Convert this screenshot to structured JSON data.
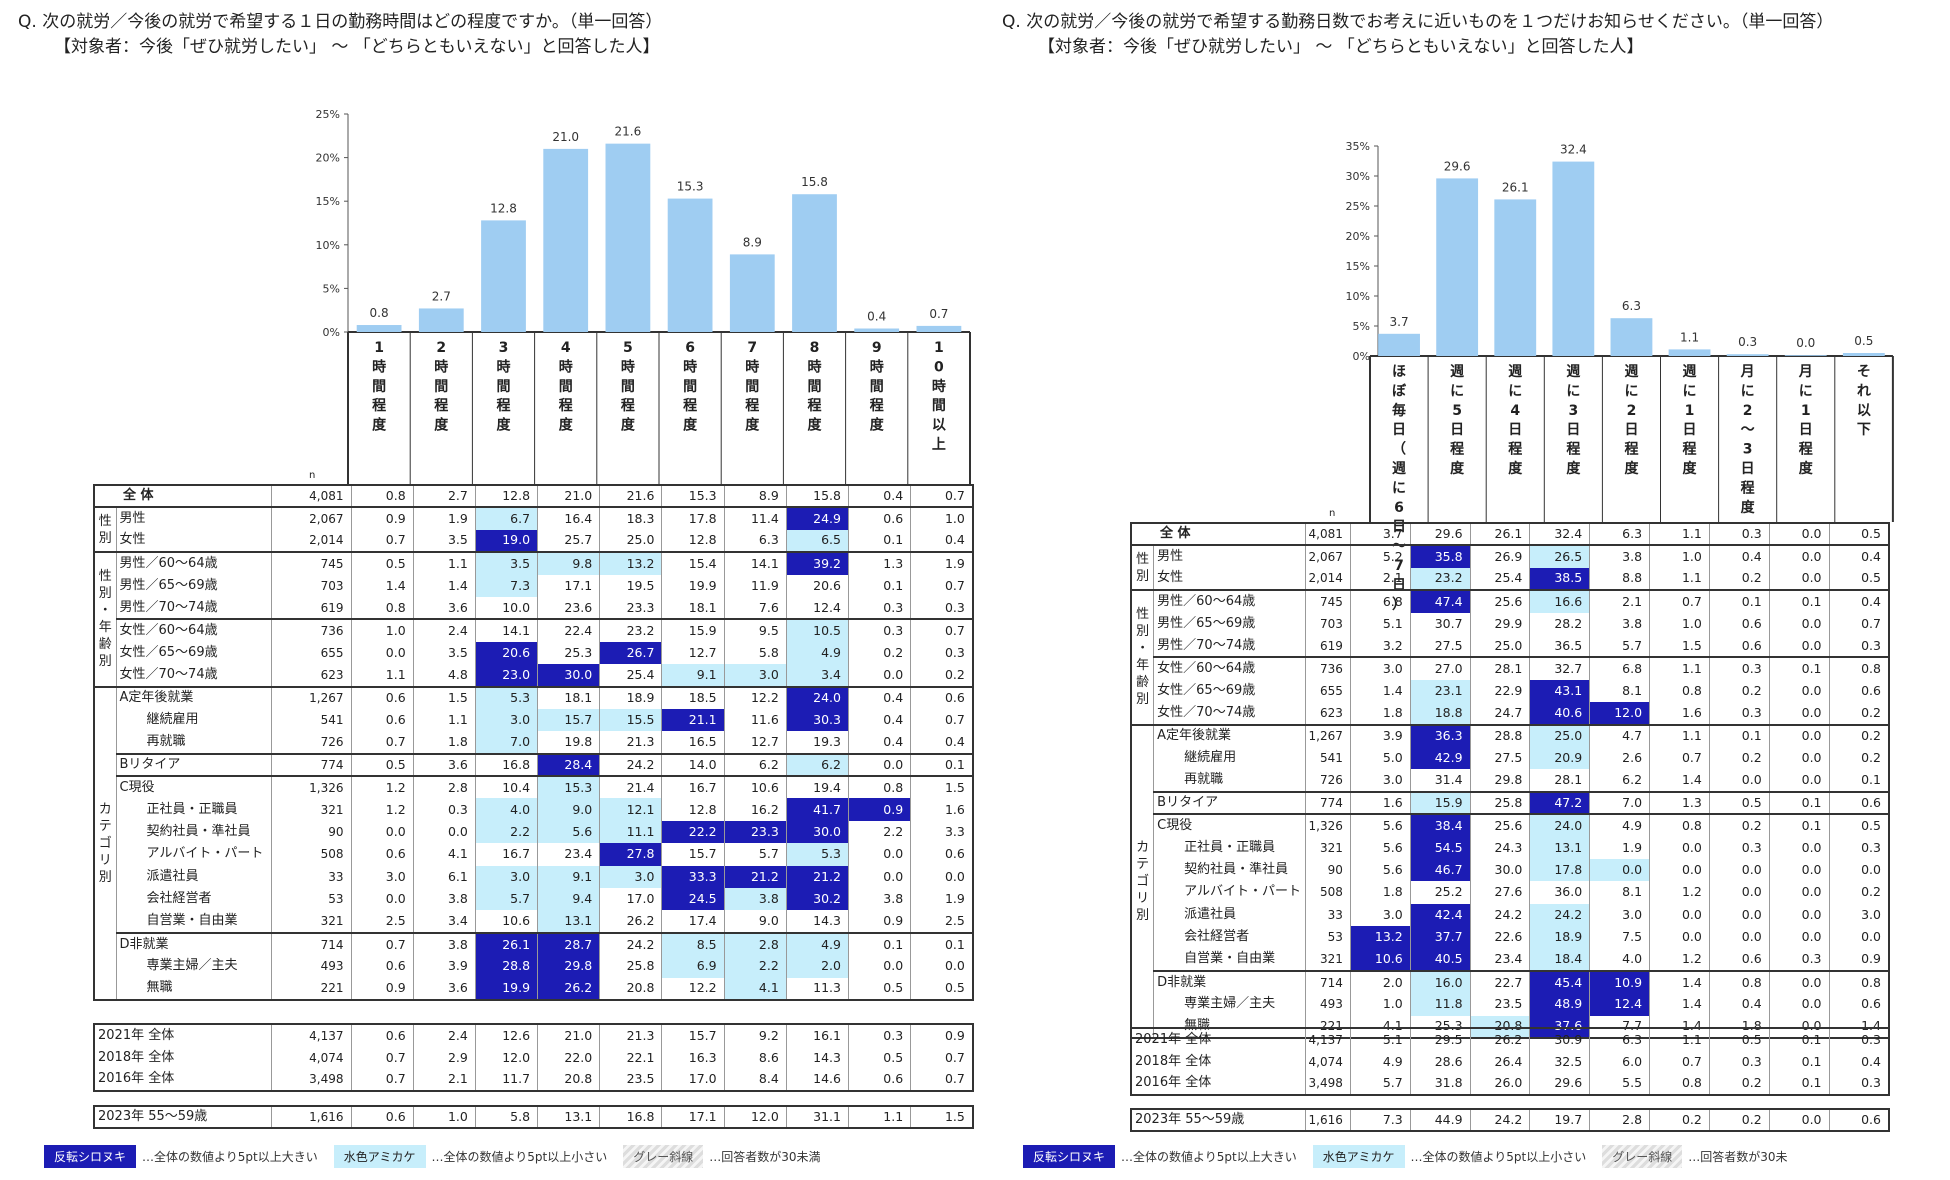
{
  "legend": {
    "hi_label": "反転シロヌキ",
    "hi_desc": "…全体の数値より5pt以上大きい",
    "lo_label": "水色アミカケ",
    "lo_desc": "…全体の数値より5pt以上小さい",
    "gray_label": "グレー斜線",
    "gray_desc": "…回答者数が30未満",
    "gray_desc_cut": "…回答者数が30未"
  },
  "colors": {
    "bar": "#9fcdf2",
    "hi": "#1c1cb4",
    "lo": "#c7eefb"
  },
  "left": {
    "question": "Q. 次の就労／今後の就労で希望する１日の勤務時間はどの程度ですか。（単一回答）",
    "target": "【対象者：今後「ぜひ就労したい」 ～ 「どちらともいえない」と回答した人】",
    "n_label": "n",
    "chart_data": {
      "type": "bar",
      "categories": [
        "1時間程度",
        "2時間程度",
        "3時間程度",
        "4時間程度",
        "5時間程度",
        "6時間程度",
        "7時間程度",
        "8時間程度",
        "9時間程度",
        "10時間以上"
      ],
      "values": [
        0.8,
        2.7,
        12.8,
        21.0,
        21.6,
        15.3,
        8.9,
        15.8,
        0.4,
        0.7
      ],
      "value_labels": [
        "0.8",
        "2.7",
        "12.8",
        "21.0",
        "21.6",
        "15.3",
        "8.9",
        "15.8",
        "0.4",
        "0.7"
      ],
      "yticks": [
        "25%",
        "20%",
        "15%",
        "10%",
        "5%",
        "0%"
      ],
      "ylim": [
        0,
        25
      ],
      "ylabel": "",
      "xlabel": ""
    },
    "col_heads": [
      "1時間程度",
      "2時間程度",
      "3時間程度",
      "4時間程度",
      "5時間程度",
      "6時間程度",
      "7時間程度",
      "8時間程度",
      "9時間程度",
      "10時間以上"
    ],
    "main": [
      {
        "label": "全 体",
        "n": "4,081",
        "v": [
          "0.8",
          "2.7",
          "12.8",
          "21.0",
          "21.6",
          "15.3",
          "8.9",
          "15.8",
          "0.4",
          "0.7"
        ],
        "s": "",
        "sub": false
      },
      {
        "g": "性別",
        "span": 2,
        "label": "男性",
        "n": "2,067",
        "v": [
          "0.9",
          "1.9",
          "6.7",
          "16.4",
          "18.3",
          "17.8",
          "11.4",
          "24.9",
          "0.6",
          "1.0"
        ],
        "s": "0010000200",
        "sep": true
      },
      {
        "label": "女性",
        "n": "2,014",
        "v": [
          "0.7",
          "3.5",
          "19.0",
          "25.7",
          "25.0",
          "12.8",
          "6.3",
          "6.5",
          "0.1",
          "0.4"
        ],
        "s": "0020000100"
      },
      {
        "g": "性別・年齢別",
        "span": 6,
        "label": "男性／60～64歳",
        "n": "745",
        "v": [
          "0.5",
          "1.1",
          "3.5",
          "9.8",
          "13.2",
          "15.4",
          "14.1",
          "39.2",
          "1.3",
          "1.9"
        ],
        "s": "0011100200",
        "sep": true
      },
      {
        "label": "男性／65～69歳",
        "n": "703",
        "v": [
          "1.4",
          "1.4",
          "7.3",
          "17.1",
          "19.5",
          "19.9",
          "11.9",
          "20.6",
          "0.1",
          "0.7"
        ],
        "s": "0010000000"
      },
      {
        "label": "男性／70～74歳",
        "n": "619",
        "v": [
          "0.8",
          "3.6",
          "10.0",
          "23.6",
          "23.3",
          "18.1",
          "7.6",
          "12.4",
          "0.3",
          "0.3"
        ],
        "s": ""
      },
      {
        "label": "女性／60～64歳",
        "n": "736",
        "v": [
          "1.0",
          "2.4",
          "14.1",
          "22.4",
          "23.2",
          "15.9",
          "9.5",
          "10.5",
          "0.3",
          "0.7"
        ],
        "s": "0000000100",
        "sep": true
      },
      {
        "label": "女性／65～69歳",
        "n": "655",
        "v": [
          "0.0",
          "3.5",
          "20.6",
          "25.3",
          "26.7",
          "12.7",
          "5.8",
          "4.9",
          "0.2",
          "0.3"
        ],
        "s": "0020200100"
      },
      {
        "label": "女性／70～74歳",
        "n": "623",
        "v": [
          "1.1",
          "4.8",
          "23.0",
          "30.0",
          "25.4",
          "9.1",
          "3.0",
          "3.4",
          "0.0",
          "0.2"
        ],
        "s": "0022011100"
      },
      {
        "g": "カテゴリ別",
        "span": 15,
        "label": "A定年後就業",
        "n": "1,267",
        "v": [
          "0.6",
          "1.5",
          "5.3",
          "18.1",
          "18.9",
          "18.5",
          "12.2",
          "24.0",
          "0.4",
          "0.6"
        ],
        "s": "0010000200",
        "sep": true
      },
      {
        "label": "継続雇用",
        "n": "541",
        "v": [
          "0.6",
          "1.1",
          "3.0",
          "15.7",
          "15.5",
          "21.1",
          "11.6",
          "30.3",
          "0.4",
          "0.7"
        ],
        "s": "0011120200",
        "sub": true
      },
      {
        "label": "再就職",
        "n": "726",
        "v": [
          "0.7",
          "1.8",
          "7.0",
          "19.8",
          "21.3",
          "16.5",
          "12.7",
          "19.3",
          "0.4",
          "0.4"
        ],
        "s": "0010000000",
        "sub": true
      },
      {
        "label": "Bリタイア",
        "n": "774",
        "v": [
          "0.5",
          "3.6",
          "16.8",
          "28.4",
          "24.2",
          "14.0",
          "6.2",
          "6.2",
          "0.0",
          "0.1"
        ],
        "s": "0002000100",
        "sep": true
      },
      {
        "label": "C現役",
        "n": "1,326",
        "v": [
          "1.2",
          "2.8",
          "10.4",
          "15.3",
          "21.4",
          "16.7",
          "10.6",
          "19.4",
          "0.8",
          "1.5"
        ],
        "s": "0001000000",
        "sep": true
      },
      {
        "label": "正社員・正職員",
        "n": "321",
        "v": [
          "1.2",
          "0.3",
          "4.0",
          "9.0",
          "12.1",
          "12.8",
          "16.2",
          "41.7",
          "0.9",
          "1.6"
        ],
        "s": "0011100220",
        "sub": true
      },
      {
        "label": "契約社員・準社員",
        "n": "90",
        "v": [
          "0.0",
          "0.0",
          "2.2",
          "5.6",
          "11.1",
          "22.2",
          "23.3",
          "30.0",
          "2.2",
          "3.3"
        ],
        "s": "0011122200",
        "sub": true
      },
      {
        "label": "アルバイト・パート",
        "n": "508",
        "v": [
          "0.6",
          "4.1",
          "16.7",
          "23.4",
          "27.8",
          "15.7",
          "5.7",
          "5.3",
          "0.0",
          "0.6"
        ],
        "s": "0000200100",
        "sub": true
      },
      {
        "label": "派遣社員",
        "n": "33",
        "v": [
          "3.0",
          "6.1",
          "3.0",
          "9.1",
          "3.0",
          "33.3",
          "21.2",
          "21.2",
          "0.0",
          "0.0"
        ],
        "s": "0011122200",
        "sub": true
      },
      {
        "label": "会社経営者",
        "n": "53",
        "v": [
          "0.0",
          "3.8",
          "5.7",
          "9.4",
          "17.0",
          "24.5",
          "3.8",
          "30.2",
          "3.8",
          "1.9"
        ],
        "s": "0011021200",
        "sub": true
      },
      {
        "label": "自営業・自由業",
        "n": "321",
        "v": [
          "2.5",
          "3.4",
          "10.6",
          "13.1",
          "26.2",
          "17.4",
          "9.0",
          "14.3",
          "0.9",
          "2.5"
        ],
        "s": "0001000000",
        "sub": true
      },
      {
        "label": "D非就業",
        "n": "714",
        "v": [
          "0.7",
          "3.8",
          "26.1",
          "28.7",
          "24.2",
          "8.5",
          "2.8",
          "4.9",
          "0.1",
          "0.1"
        ],
        "s": "0022011100",
        "sep": true
      },
      {
        "label": "専業主婦／主夫",
        "n": "493",
        "v": [
          "0.6",
          "3.9",
          "28.8",
          "29.8",
          "25.8",
          "6.9",
          "2.2",
          "2.0",
          "0.0",
          "0.0"
        ],
        "s": "0022011100",
        "sub": true
      },
      {
        "label": "無職",
        "n": "221",
        "v": [
          "0.9",
          "3.6",
          "19.9",
          "26.2",
          "20.8",
          "12.2",
          "4.1",
          "11.3",
          "0.5",
          "0.5"
        ],
        "s": "0022001000",
        "sub": true
      }
    ],
    "years": [
      {
        "label": "2021年 全体",
        "n": "4,137",
        "v": [
          "0.6",
          "2.4",
          "12.6",
          "21.0",
          "21.3",
          "15.7",
          "9.2",
          "16.1",
          "0.3",
          "0.9"
        ]
      },
      {
        "label": "2018年 全体",
        "n": "4,074",
        "v": [
          "0.7",
          "2.9",
          "12.0",
          "22.0",
          "22.1",
          "16.3",
          "8.6",
          "14.3",
          "0.5",
          "0.7"
        ]
      },
      {
        "label": "2016年 全体",
        "n": "3,498",
        "v": [
          "0.7",
          "2.1",
          "11.7",
          "20.8",
          "23.5",
          "17.0",
          "8.4",
          "14.6",
          "0.6",
          "0.7"
        ]
      }
    ],
    "extra": [
      {
        "label": "2023年 55～59歳",
        "n": "1,616",
        "v": [
          "0.6",
          "1.0",
          "5.8",
          "13.1",
          "16.8",
          "17.1",
          "12.0",
          "31.1",
          "1.1",
          "1.5"
        ]
      }
    ]
  },
  "right": {
    "question": "Q. 次の就労／今後の就労で希望する勤務日数でお考えに近いものを１つだけお知らせください。（単一回答）",
    "target": "【対象者：今後「ぜひ就労したい」 ～ 「どちらともいえない」と回答した人】",
    "n_label": "n",
    "chart_data": {
      "type": "bar",
      "categories": [
        "ほぼ毎日（週に6日～7日）",
        "週に5日程度",
        "週に4日程度",
        "週に3日程度",
        "週に2日程度",
        "週に1日程度",
        "月に2～3日程度",
        "月に1日程度",
        "それ以下"
      ],
      "values": [
        3.7,
        29.6,
        26.1,
        32.4,
        6.3,
        1.1,
        0.3,
        0.0,
        0.5
      ],
      "value_labels": [
        "3.7",
        "29.6",
        "26.1",
        "32.4",
        "6.3",
        "1.1",
        "0.3",
        "0.0",
        "0.5"
      ],
      "yticks": [
        "35%",
        "30%",
        "25%",
        "20%",
        "15%",
        "10%",
        "5%",
        "0%"
      ],
      "ylim": [
        0,
        35
      ],
      "ylabel": "",
      "xlabel": ""
    },
    "col_heads": [
      "ほぼ毎日（週に6日～7日）",
      "週に5日程度",
      "週に4日程度",
      "週に3日程度",
      "週に2日程度",
      "週に1日程度",
      "月に2～3日程度",
      "月に1日程度",
      "それ以下"
    ],
    "main": [
      {
        "label": "全 体",
        "n": "4,081",
        "v": [
          "3.7",
          "29.6",
          "26.1",
          "32.4",
          "6.3",
          "1.1",
          "0.3",
          "0.0",
          "0.5"
        ],
        "s": ""
      },
      {
        "g": "性別",
        "span": 2,
        "label": "男性",
        "n": "2,067",
        "v": [
          "5.2",
          "35.8",
          "26.9",
          "26.5",
          "3.8",
          "1.0",
          "0.4",
          "0.0",
          "0.4"
        ],
        "s": "020100000",
        "sep": true
      },
      {
        "label": "女性",
        "n": "2,014",
        "v": [
          "2.1",
          "23.2",
          "25.4",
          "38.5",
          "8.8",
          "1.1",
          "0.2",
          "0.0",
          "0.5"
        ],
        "s": "010200000"
      },
      {
        "g": "性別・年齢別",
        "span": 6,
        "label": "男性／60～64歳",
        "n": "745",
        "v": [
          "6.8",
          "47.4",
          "25.6",
          "16.6",
          "2.1",
          "0.7",
          "0.1",
          "0.1",
          "0.4"
        ],
        "s": "020100000",
        "sep": true
      },
      {
        "label": "男性／65～69歳",
        "n": "703",
        "v": [
          "5.1",
          "30.7",
          "29.9",
          "28.2",
          "3.8",
          "1.0",
          "0.6",
          "0.0",
          "0.7"
        ],
        "s": ""
      },
      {
        "label": "男性／70～74歳",
        "n": "619",
        "v": [
          "3.2",
          "27.5",
          "25.0",
          "36.5",
          "5.7",
          "1.5",
          "0.6",
          "0.0",
          "0.3"
        ],
        "s": ""
      },
      {
        "label": "女性／60～64歳",
        "n": "736",
        "v": [
          "3.0",
          "27.0",
          "28.1",
          "32.7",
          "6.8",
          "1.1",
          "0.3",
          "0.1",
          "0.8"
        ],
        "s": "",
        "sep": true
      },
      {
        "label": "女性／65～69歳",
        "n": "655",
        "v": [
          "1.4",
          "23.1",
          "22.9",
          "43.1",
          "8.1",
          "0.8",
          "0.2",
          "0.0",
          "0.6"
        ],
        "s": "010200000"
      },
      {
        "label": "女性／70～74歳",
        "n": "623",
        "v": [
          "1.8",
          "18.8",
          "24.7",
          "40.6",
          "12.0",
          "1.6",
          "0.3",
          "0.0",
          "0.2"
        ],
        "s": "010220000"
      },
      {
        "g": "カテゴリ別",
        "span": 15,
        "label": "A定年後就業",
        "n": "1,267",
        "v": [
          "3.9",
          "36.3",
          "28.8",
          "25.0",
          "4.7",
          "1.1",
          "0.1",
          "0.0",
          "0.2"
        ],
        "s": "020100000",
        "sep": true
      },
      {
        "label": "継続雇用",
        "n": "541",
        "v": [
          "5.0",
          "42.9",
          "27.5",
          "20.9",
          "2.6",
          "0.7",
          "0.2",
          "0.0",
          "0.2"
        ],
        "s": "020100000",
        "sub": true
      },
      {
        "label": "再就職",
        "n": "726",
        "v": [
          "3.0",
          "31.4",
          "29.8",
          "28.1",
          "6.2",
          "1.4",
          "0.0",
          "0.0",
          "0.1"
        ],
        "s": "",
        "sub": true
      },
      {
        "label": "Bリタイア",
        "n": "774",
        "v": [
          "1.6",
          "15.9",
          "25.8",
          "47.2",
          "7.0",
          "1.3",
          "0.5",
          "0.1",
          "0.6"
        ],
        "s": "010200000",
        "sep": true
      },
      {
        "label": "C現役",
        "n": "1,326",
        "v": [
          "5.6",
          "38.4",
          "25.6",
          "24.0",
          "4.9",
          "0.8",
          "0.2",
          "0.1",
          "0.5"
        ],
        "s": "020100000",
        "sep": true
      },
      {
        "label": "正社員・正職員",
        "n": "321",
        "v": [
          "5.6",
          "54.5",
          "24.3",
          "13.1",
          "1.9",
          "0.0",
          "0.3",
          "0.0",
          "0.3"
        ],
        "s": "020100000",
        "sub": true
      },
      {
        "label": "契約社員・準社員",
        "n": "90",
        "v": [
          "5.6",
          "46.7",
          "30.0",
          "17.8",
          "0.0",
          "0.0",
          "0.0",
          "0.0",
          "0.0"
        ],
        "s": "020110000",
        "sub": true
      },
      {
        "label": "アルバイト・パート",
        "n": "508",
        "v": [
          "1.8",
          "25.2",
          "27.6",
          "36.0",
          "8.1",
          "1.2",
          "0.0",
          "0.0",
          "0.2"
        ],
        "s": "",
        "sub": true
      },
      {
        "label": "派遣社員",
        "n": "33",
        "v": [
          "3.0",
          "42.4",
          "24.2",
          "24.2",
          "3.0",
          "0.0",
          "0.0",
          "0.0",
          "3.0"
        ],
        "s": "020100000",
        "sub": true
      },
      {
        "label": "会社経営者",
        "n": "53",
        "v": [
          "13.2",
          "37.7",
          "22.6",
          "18.9",
          "7.5",
          "0.0",
          "0.0",
          "0.0",
          "0.0"
        ],
        "s": "220100000",
        "sub": true
      },
      {
        "label": "自営業・自由業",
        "n": "321",
        "v": [
          "10.6",
          "40.5",
          "23.4",
          "18.4",
          "4.0",
          "1.2",
          "0.6",
          "0.3",
          "0.9"
        ],
        "s": "220100000",
        "sub": true
      },
      {
        "label": "D非就業",
        "n": "714",
        "v": [
          "2.0",
          "16.0",
          "22.7",
          "45.4",
          "10.9",
          "1.4",
          "0.8",
          "0.0",
          "0.8"
        ],
        "s": "010220000",
        "sep": true
      },
      {
        "label": "専業主婦／主夫",
        "n": "493",
        "v": [
          "1.0",
          "11.8",
          "23.5",
          "48.9",
          "12.4",
          "1.4",
          "0.4",
          "0.0",
          "0.6"
        ],
        "s": "010220000",
        "sub": true
      },
      {
        "label": "無職",
        "n": "221",
        "v": [
          "4.1",
          "25.3",
          "20.8",
          "37.6",
          "7.7",
          "1.4",
          "1.8",
          "0.0",
          "1.4"
        ],
        "s": "001200000",
        "sub": true
      }
    ],
    "years": [
      {
        "label": "2021年 全体",
        "n": "4,137",
        "v": [
          "5.1",
          "29.5",
          "26.2",
          "30.9",
          "6.3",
          "1.1",
          "0.5",
          "0.1",
          "0.3"
        ]
      },
      {
        "label": "2018年 全体",
        "n": "4,074",
        "v": [
          "4.9",
          "28.6",
          "26.4",
          "32.5",
          "6.0",
          "0.7",
          "0.3",
          "0.1",
          "0.4"
        ]
      },
      {
        "label": "2016年 全体",
        "n": "3,498",
        "v": [
          "5.7",
          "31.8",
          "26.0",
          "29.6",
          "5.5",
          "0.8",
          "0.2",
          "0.1",
          "0.3"
        ]
      }
    ],
    "extra": [
      {
        "label": "2023年 55～59歳",
        "n": "1,616",
        "v": [
          "7.3",
          "44.9",
          "24.2",
          "19.7",
          "2.8",
          "0.2",
          "0.2",
          "0.0",
          "0.6"
        ]
      }
    ]
  }
}
